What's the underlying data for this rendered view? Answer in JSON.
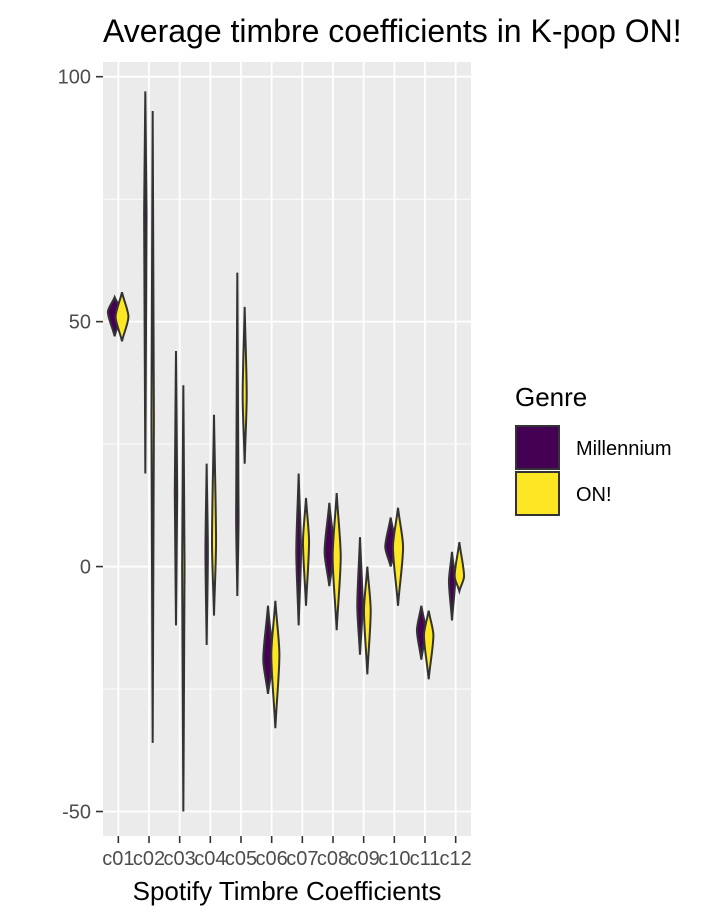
{
  "chart_data": {
    "type": "violin",
    "title": "Average timbre coefficients in K-pop ON!",
    "xlabel": "Spotify Timbre Coefficients",
    "ylabel": "",
    "ylim": [
      -55,
      103
    ],
    "yticks": [
      -50,
      0,
      50,
      100
    ],
    "ytick_labels": [
      "-50",
      "0",
      "50",
      "100"
    ],
    "grid": true,
    "legend": {
      "title": "Genre",
      "position": "right",
      "entries": [
        {
          "label": "Millennium",
          "color": "#440154"
        },
        {
          "label": "ON!",
          "color": "#FDE725"
        }
      ]
    },
    "categories": [
      "c01",
      "c02",
      "c03",
      "c04",
      "c05",
      "c06",
      "c07",
      "c08",
      "c09",
      "c10",
      "c11",
      "c12"
    ],
    "series": [
      {
        "name": "Millennium",
        "color": "#440154",
        "violins": [
          {
            "min": 47,
            "max": 55,
            "center": 52,
            "width": 1.0
          },
          {
            "min": 19,
            "max": 97,
            "center": 72,
            "width": 0.15
          },
          {
            "min": -12,
            "max": 44,
            "center": 15,
            "width": 0.12
          },
          {
            "min": -16,
            "max": 21,
            "center": 3,
            "width": 0.15
          },
          {
            "min": -6,
            "max": 60,
            "center": 10,
            "width": 0.1
          },
          {
            "min": -26,
            "max": -8,
            "center": -19,
            "width": 0.7
          },
          {
            "min": -12,
            "max": 19,
            "center": 3,
            "width": 0.35
          },
          {
            "min": -4,
            "max": 13,
            "center": 3,
            "width": 0.7
          },
          {
            "min": -18,
            "max": 6,
            "center": -8,
            "width": 0.4
          },
          {
            "min": 0,
            "max": 10,
            "center": 4,
            "width": 0.8
          },
          {
            "min": -19,
            "max": -8,
            "center": -13,
            "width": 0.65
          },
          {
            "min": -11,
            "max": 3,
            "center": -3,
            "width": 0.45
          }
        ]
      },
      {
        "name": "ON!",
        "color": "#FDE725",
        "violins": [
          {
            "min": 46,
            "max": 56,
            "center": 51,
            "width": 0.95
          },
          {
            "min": -36,
            "max": 93,
            "center": 30,
            "width": 0.1
          },
          {
            "min": -50,
            "max": 37,
            "center": 0,
            "width": 0.08
          },
          {
            "min": -10,
            "max": 31,
            "center": 5,
            "width": 0.3
          },
          {
            "min": 21,
            "max": 53,
            "center": 35,
            "width": 0.3
          },
          {
            "min": -33,
            "max": -7,
            "center": -18,
            "width": 0.6
          },
          {
            "min": -8,
            "max": 14,
            "center": 5,
            "width": 0.45
          },
          {
            "min": -13,
            "max": 15,
            "center": 2,
            "width": 0.6
          },
          {
            "min": -22,
            "max": 0,
            "center": -9,
            "width": 0.5
          },
          {
            "min": -8,
            "max": 12,
            "center": 4,
            "width": 0.75
          },
          {
            "min": -23,
            "max": -9,
            "center": -14,
            "width": 0.7
          },
          {
            "min": -5,
            "max": 5,
            "center": -2,
            "width": 0.7
          }
        ]
      }
    ]
  }
}
